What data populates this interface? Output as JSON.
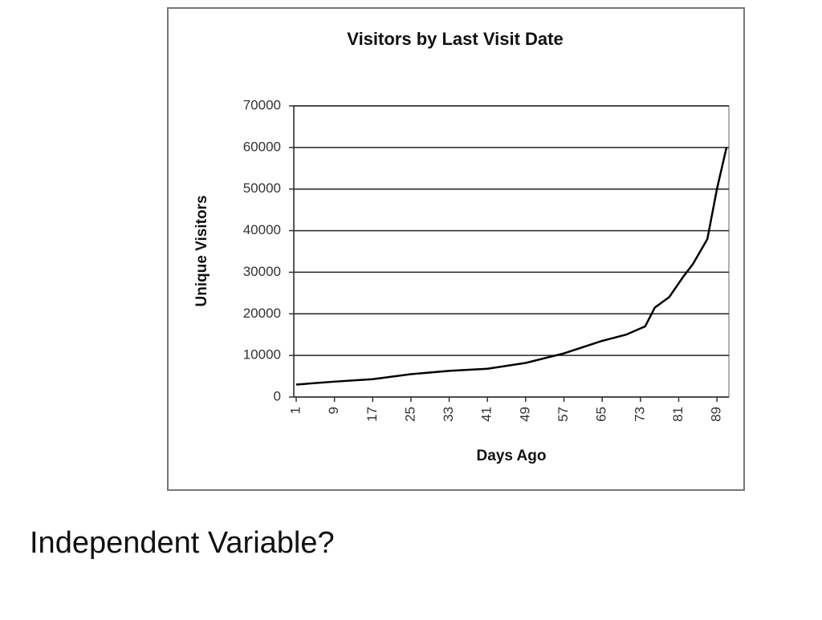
{
  "chart_data": {
    "type": "line",
    "title": "Visitors by Last Visit Date",
    "x_label": "Days Ago",
    "y_label": "Unique Visitors",
    "x": [
      1,
      9,
      17,
      25,
      33,
      41,
      49,
      57,
      65,
      70,
      74,
      76,
      79,
      82,
      84,
      87,
      89,
      91
    ],
    "series": [
      {
        "name": "Unique Visitors",
        "color": "#000000",
        "values": [
          3000,
          3700,
          4300,
          5500,
          6300,
          6800,
          8200,
          10500,
          13500,
          15000,
          17000,
          21500,
          24000,
          29000,
          32000,
          38000,
          50000,
          60000
        ]
      }
    ],
    "xlim": [
      0.5,
      91.5
    ],
    "xticks": [
      1,
      9,
      17,
      25,
      33,
      41,
      49,
      57,
      65,
      73,
      81,
      89
    ],
    "ylim": [
      0,
      70000
    ],
    "yticks": [
      0,
      10000,
      20000,
      30000,
      40000,
      50000,
      60000,
      70000
    ],
    "grid": true
  },
  "caption": "Independent Variable?"
}
